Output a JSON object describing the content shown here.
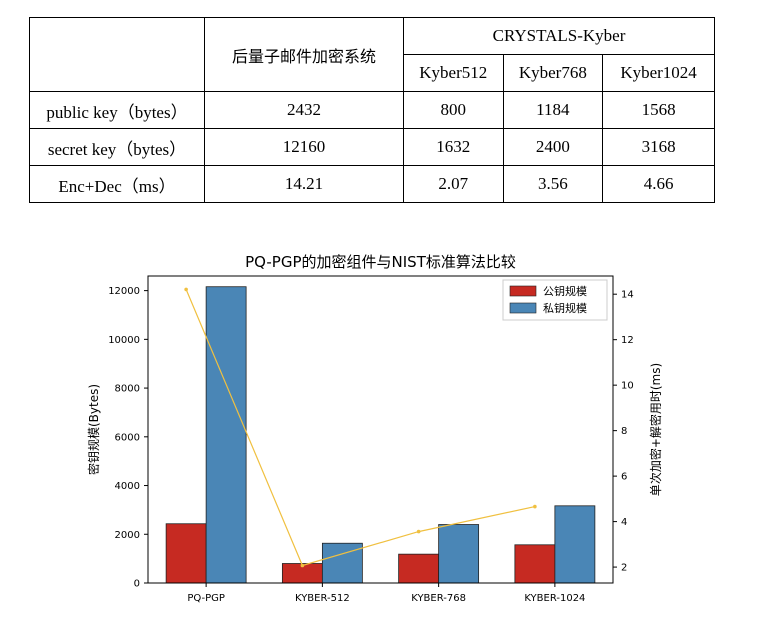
{
  "table": {
    "group_header": "CRYSTALS-Kyber",
    "col_main": "后量子邮件加密系统",
    "sub_headers": [
      "Kyber512",
      "Kyber768",
      "Kyber1024"
    ],
    "rows": [
      {
        "label": "public key（bytes）",
        "values": [
          "2432",
          "800",
          "1184",
          "1568"
        ]
      },
      {
        "label": "secret key（bytes）",
        "values": [
          "12160",
          "1632",
          "2400",
          "3168"
        ]
      },
      {
        "label": "Enc+Dec（ms）",
        "values": [
          "14.21",
          "2.07",
          "3.56",
          "4.66"
        ]
      }
    ]
  },
  "chart_data": {
    "type": "bar",
    "title": "PQ-PGP的加密组件与NIST标准算法比较",
    "categories": [
      "PQ-PGP",
      "KYBER-512",
      "KYBER-768",
      "KYBER-1024"
    ],
    "ylabel": "密钥规模(Bytes)",
    "y2label": "单次加密+解密用时(ms)",
    "ylim": [
      0,
      12600
    ],
    "y2lim": [
      1.3,
      14.8
    ],
    "yticks": [
      0,
      2000,
      4000,
      6000,
      8000,
      10000,
      12000
    ],
    "y2ticks": [
      2,
      4,
      6,
      8,
      10,
      12,
      14
    ],
    "series": [
      {
        "name": "公钥规模",
        "values": [
          2432,
          800,
          1184,
          1568
        ],
        "color": "#c62a22",
        "axis": "left"
      },
      {
        "name": "私钥规模",
        "values": [
          12160,
          1632,
          2400,
          3168
        ],
        "color": "#4a86b6",
        "axis": "left"
      },
      {
        "name": "",
        "type": "line",
        "values": [
          14.21,
          2.07,
          3.56,
          4.66
        ],
        "color": "#f0c040",
        "axis": "right"
      }
    ],
    "legend": "top-right",
    "grid": false
  }
}
